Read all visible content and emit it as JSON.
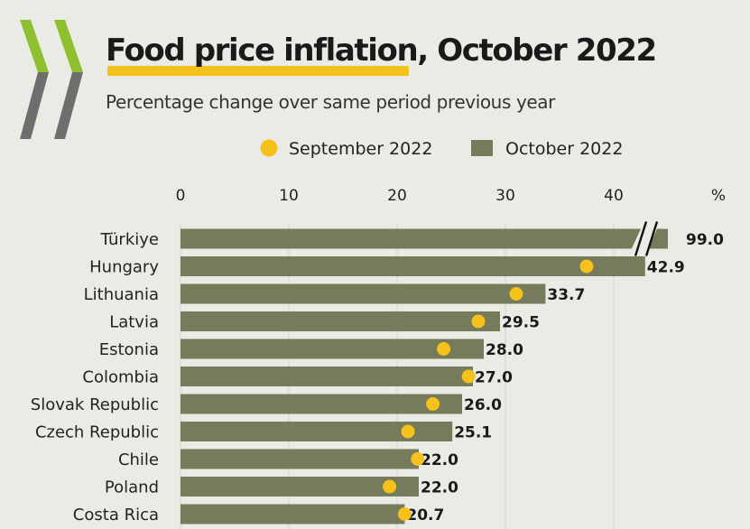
{
  "colors": {
    "bar": "#767b5b",
    "marker": "#f7c11b",
    "logo_green": "#8dbf2e",
    "logo_grey": "#6e6e6e",
    "highlight": "#f4c21d"
  },
  "icons": {
    "logo": "oecd-chevrons-logo"
  },
  "chart_data": {
    "type": "bar",
    "orientation": "horizontal",
    "title": "Food price inflation, October 2022",
    "subtitle": "Percentage change over same period previous year",
    "unit_label": "%",
    "xlim": [
      0,
      45
    ],
    "xticks": [
      "0",
      "10",
      "20",
      "30",
      "40"
    ],
    "grid": true,
    "legend": "top-center",
    "axis_break": {
      "category": "Türkiye",
      "symbol": "//"
    },
    "categories": [
      "Türkiye",
      "Hungary",
      "Lithuania",
      "Latvia",
      "Estonia",
      "Colombia",
      "Slovak Republic",
      "Czech Republic",
      "Chile",
      "Poland",
      "Costa Rica"
    ],
    "series": [
      {
        "name": "September 2022",
        "kind": "marker",
        "values": [
          null,
          37.5,
          31.0,
          27.5,
          24.3,
          26.6,
          23.3,
          21.0,
          21.9,
          19.3,
          20.7
        ]
      },
      {
        "name": "October 2022",
        "kind": "bar",
        "values": [
          99.0,
          42.9,
          33.7,
          29.5,
          28.0,
          27.0,
          26.0,
          25.1,
          22.0,
          22.0,
          20.7
        ],
        "labels": [
          "99.0",
          "42.9",
          "33.7",
          "29.5",
          "28.0",
          "27.0",
          "26.0",
          "25.1",
          "22.0",
          "22.0",
          "20.7"
        ]
      }
    ]
  }
}
